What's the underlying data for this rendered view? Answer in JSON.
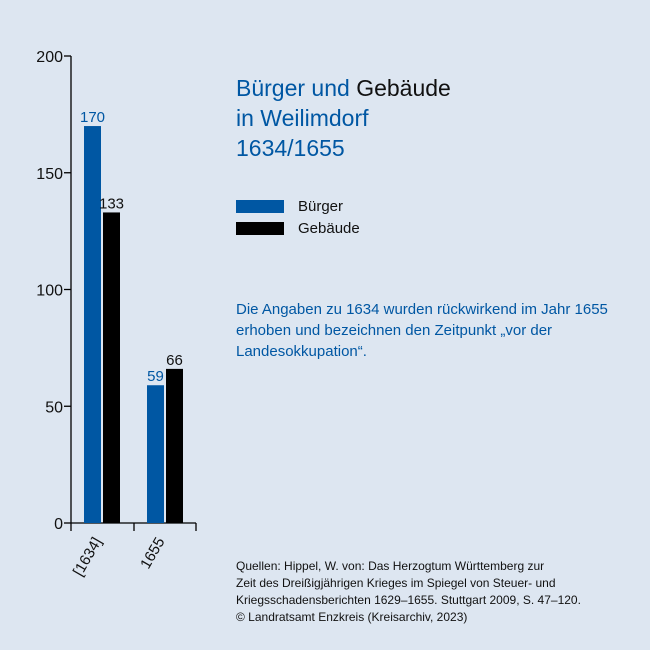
{
  "title": {
    "part1": "Bürger und ",
    "part2": "Gebäude",
    "line2": "in Weilimdorf",
    "line3": "1634/1655"
  },
  "legend": [
    {
      "label": "Bürger",
      "color": "#0057a3"
    },
    {
      "label": "Gebäude",
      "color": "#000000"
    }
  ],
  "note": "Die Angaben zu 1634 wurden rückwirkend im Jahr 1655 erhoben und bezeichnen den Zeitpunkt „vor der Landesokkupation“.",
  "sources": [
    "Quellen: Hippel, W. von: Das Herzogtum Württemberg zur",
    "Zeit des Dreißigjährigen Krieges im Spiegel von Steuer- und",
    "Kriegsschadensberichten 1629–1655. Stuttgart 2009, S. 47–120.",
    "© Landratsamt Enzkreis (Kreisarchiv, 2023)"
  ],
  "chart_data": {
    "type": "bar",
    "categories": [
      "[1634]",
      "1655"
    ],
    "series": [
      {
        "name": "Bürger",
        "values": [
          170,
          59
        ],
        "color": "#0057a3"
      },
      {
        "name": "Gebäude",
        "values": [
          133,
          66
        ],
        "color": "#000000"
      }
    ],
    "ylim": [
      0,
      200
    ],
    "yticks": [
      0,
      50,
      100,
      150,
      200
    ],
    "grid": false
  }
}
